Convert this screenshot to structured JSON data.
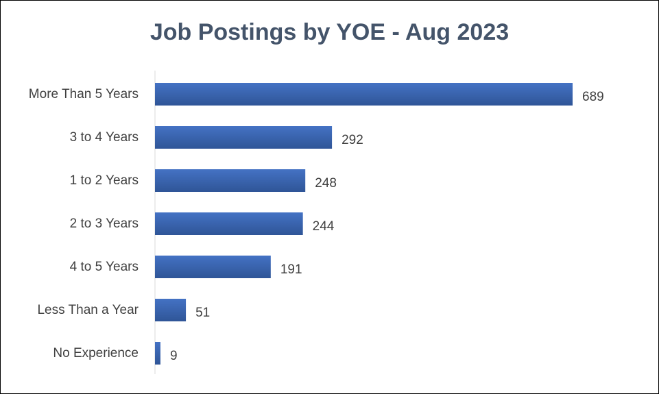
{
  "chart_data": {
    "type": "bar",
    "orientation": "horizontal",
    "title": "Job Postings by YOE - Aug 2023",
    "categories": [
      "More Than 5 Years",
      "3 to 4 Years",
      "1 to 2 Years",
      "2 to 3 Years",
      "4 to 5 Years",
      "Less Than a Year",
      "No Experience"
    ],
    "values": [
      689,
      292,
      248,
      244,
      191,
      51,
      9
    ],
    "xlim": [
      0,
      689
    ],
    "grid": false,
    "legend": "none",
    "colors": {
      "bar": "#4472c4",
      "bar_dark": "#2f5597",
      "title": "#44546a",
      "text": "#404040",
      "axis": "#d9d9d9"
    }
  }
}
